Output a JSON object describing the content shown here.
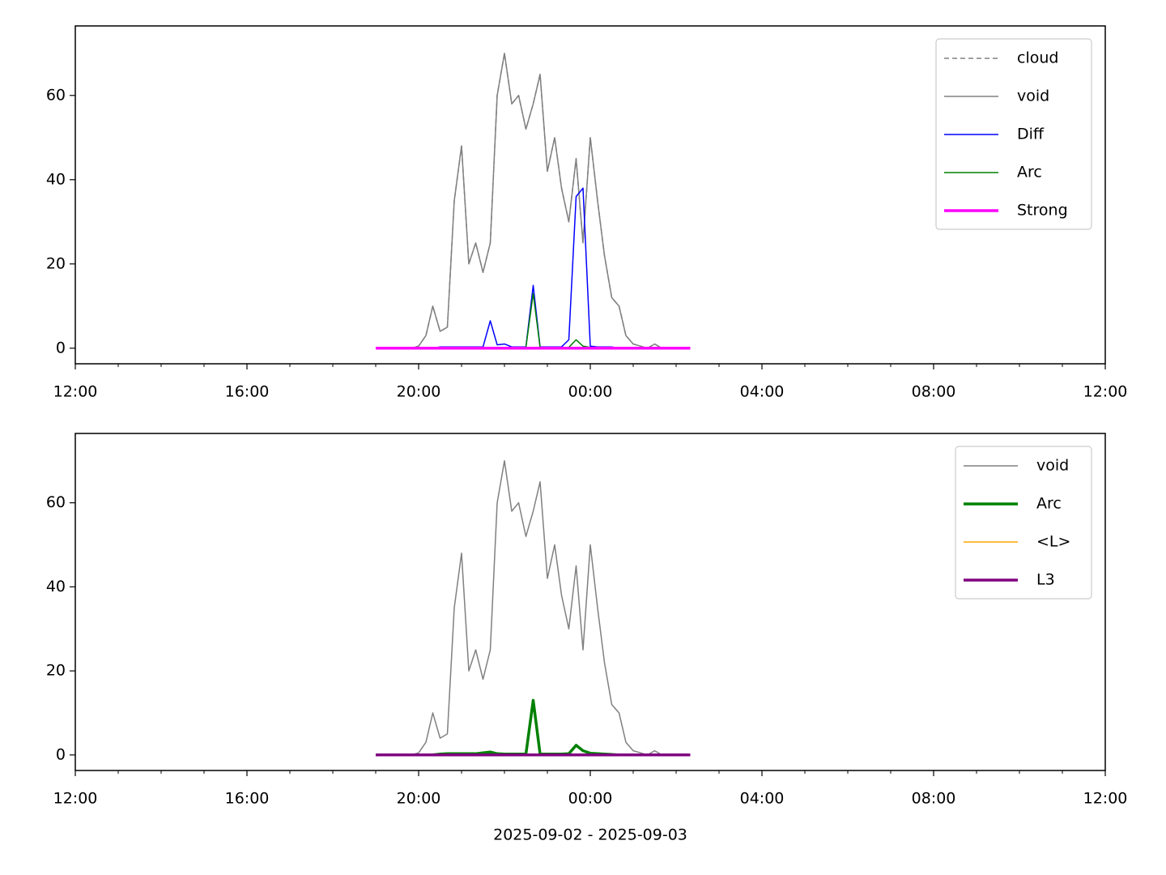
{
  "chart_data": [
    {
      "type": "line",
      "x": [
        7.0,
        7.17,
        7.33,
        7.5,
        7.67,
        7.83,
        8.0,
        8.17,
        8.33,
        8.5,
        8.67,
        8.83,
        9.0,
        9.17,
        9.33,
        9.5,
        9.67,
        9.83,
        10.0,
        10.17,
        10.33,
        10.5,
        10.67,
        10.83,
        11.0,
        11.17,
        11.33,
        11.5,
        11.67,
        11.83,
        12.0,
        12.17,
        12.33,
        12.5,
        12.67,
        12.83,
        13.0,
        13.17,
        13.33,
        13.5,
        13.67,
        13.83,
        14.0,
        14.17,
        14.33
      ],
      "series": [
        {
          "name": "cloud",
          "color": "#808080",
          "linestyle": "dashed",
          "linewidth": 1.5,
          "values": [
            0,
            0,
            0,
            0,
            0,
            0,
            0.5,
            3,
            10,
            4,
            5,
            35,
            48,
            20,
            25,
            18,
            25,
            60,
            70,
            58,
            60,
            52,
            58,
            65,
            42,
            50,
            38,
            30,
            45,
            25,
            50,
            35,
            22,
            12,
            10,
            3,
            1,
            0.5,
            0,
            1,
            0,
            0,
            0,
            0,
            0
          ]
        },
        {
          "name": "void",
          "color": "#808080",
          "linestyle": "solid",
          "linewidth": 1.5,
          "values": [
            0,
            0,
            0,
            0,
            0,
            0,
            0.5,
            3,
            10,
            4,
            5,
            35,
            48,
            20,
            25,
            18,
            25,
            60,
            70,
            58,
            60,
            52,
            58,
            65,
            42,
            50,
            38,
            30,
            45,
            25,
            50,
            35,
            22,
            12,
            10,
            3,
            1,
            0.5,
            0,
            1,
            0,
            0,
            0,
            0,
            0
          ]
        },
        {
          "name": "Diff",
          "color": "#0000ff",
          "linestyle": "solid",
          "linewidth": 1.5,
          "values": [
            0,
            0,
            0,
            0,
            0,
            0,
            0,
            0,
            0,
            0.3,
            0.3,
            0.3,
            0.3,
            0.3,
            0.3,
            0.3,
            6.5,
            0.8,
            1,
            0.3,
            0.3,
            0.3,
            14.9,
            0.3,
            0.3,
            0.3,
            0.3,
            2,
            36,
            38,
            0.5,
            0.3,
            0.3,
            0.3,
            0,
            0,
            0,
            0,
            0,
            0,
            0,
            0,
            0,
            0,
            0
          ]
        },
        {
          "name": "Arc",
          "color": "#008000",
          "linestyle": "solid",
          "linewidth": 1.5,
          "values": [
            0,
            0,
            0,
            0,
            0,
            0,
            0,
            0,
            0,
            0.2,
            0.2,
            0.2,
            0.2,
            0.2,
            0.2,
            0.2,
            0.2,
            0.2,
            0.2,
            0.2,
            0.2,
            0.2,
            13,
            0.2,
            0.2,
            0.2,
            0.2,
            0.2,
            2,
            0.5,
            0.2,
            0.2,
            0.2,
            0.1,
            0,
            0,
            0,
            0,
            0,
            0,
            0,
            0,
            0,
            0,
            0
          ]
        },
        {
          "name": "Strong",
          "color": "#ff00ff",
          "linestyle": "solid",
          "linewidth": 3.5,
          "values": [
            0,
            0,
            0,
            0,
            0,
            0,
            0,
            0,
            0,
            0,
            0,
            0,
            0,
            0,
            0,
            0,
            0,
            0,
            0,
            0,
            0,
            0,
            0,
            0,
            0,
            0,
            0,
            0,
            0,
            0,
            0,
            0,
            0,
            0,
            0,
            0,
            0,
            0,
            0,
            0,
            0,
            0,
            0,
            0,
            0
          ]
        }
      ],
      "xlim": [
        0,
        24
      ],
      "xticks": [
        {
          "value": 0,
          "label": "12:00"
        },
        {
          "value": 4,
          "label": "16:00"
        },
        {
          "value": 8,
          "label": "20:00"
        },
        {
          "value": 12,
          "label": "00:00"
        },
        {
          "value": 16,
          "label": "04:00"
        },
        {
          "value": 20,
          "label": "08:00"
        },
        {
          "value": 24,
          "label": "12:00"
        }
      ],
      "ylim": [
        -3.7,
        76.5
      ],
      "yticks": [
        0,
        20,
        40,
        60
      ],
      "legend": "upper right"
    },
    {
      "type": "line",
      "x": [
        7.0,
        7.17,
        7.33,
        7.5,
        7.67,
        7.83,
        8.0,
        8.17,
        8.33,
        8.5,
        8.67,
        8.83,
        9.0,
        9.17,
        9.33,
        9.5,
        9.67,
        9.83,
        10.0,
        10.17,
        10.33,
        10.5,
        10.67,
        10.83,
        11.0,
        11.17,
        11.33,
        11.5,
        11.67,
        11.83,
        12.0,
        12.17,
        12.33,
        12.5,
        12.67,
        12.83,
        13.0,
        13.17,
        13.33,
        13.5,
        13.67,
        13.83,
        14.0,
        14.17,
        14.33
      ],
      "series": [
        {
          "name": "void",
          "color": "#808080",
          "linestyle": "solid",
          "linewidth": 1.5,
          "values": [
            0,
            0,
            0,
            0,
            0,
            0,
            0.5,
            3,
            10,
            4,
            5,
            35,
            48,
            20,
            25,
            18,
            25,
            60,
            70,
            58,
            60,
            52,
            58,
            65,
            42,
            50,
            38,
            30,
            45,
            25,
            50,
            35,
            22,
            12,
            10,
            3,
            1,
            0.5,
            0,
            1,
            0,
            0,
            0,
            0,
            0
          ]
        },
        {
          "name": "Arc",
          "color": "#008000",
          "linestyle": "solid",
          "linewidth": 3.5,
          "values": [
            0,
            0,
            0,
            0,
            0,
            0,
            0,
            0,
            0,
            0.2,
            0.3,
            0.3,
            0.3,
            0.3,
            0.3,
            0.5,
            0.7,
            0.3,
            0.2,
            0.2,
            0.2,
            0.2,
            13,
            0.2,
            0.2,
            0.2,
            0.2,
            0.3,
            2.3,
            1,
            0.4,
            0.3,
            0.2,
            0.1,
            0,
            0,
            0,
            0,
            0,
            0,
            0,
            0,
            0,
            0,
            0
          ]
        },
        {
          "name": "<L>",
          "color": "#ffa500",
          "linestyle": "solid",
          "linewidth": 1.5,
          "values": [
            0,
            0,
            0,
            0,
            0,
            0,
            0,
            0,
            0,
            0,
            0,
            0,
            0,
            0,
            0,
            0,
            0,
            0,
            0,
            0,
            0,
            0,
            0,
            0,
            0,
            0,
            0,
            0,
            0,
            0,
            0,
            0,
            0,
            0,
            0,
            0,
            0,
            0,
            0,
            0,
            0,
            0,
            0,
            0,
            0
          ]
        },
        {
          "name": "L3",
          "color": "#800080",
          "linestyle": "solid",
          "linewidth": 3.5,
          "values": [
            0,
            0,
            0,
            0,
            0,
            0,
            0,
            0,
            0,
            0,
            0,
            0,
            0,
            0,
            0,
            0,
            0,
            0,
            0,
            0,
            0,
            0,
            0,
            0,
            0,
            0,
            0,
            0,
            0,
            0,
            0,
            0,
            0,
            0,
            0,
            0,
            0,
            0,
            0,
            0,
            0,
            0,
            0,
            0,
            0
          ]
        }
      ],
      "xlim": [
        0,
        24
      ],
      "xticks": [
        {
          "value": 0,
          "label": "12:00"
        },
        {
          "value": 4,
          "label": "16:00"
        },
        {
          "value": 8,
          "label": "20:00"
        },
        {
          "value": 12,
          "label": "00:00"
        },
        {
          "value": 16,
          "label": "04:00"
        },
        {
          "value": 20,
          "label": "08:00"
        },
        {
          "value": 24,
          "label": "12:00"
        }
      ],
      "ylim": [
        -3.7,
        76.5
      ],
      "yticks": [
        0,
        20,
        40,
        60
      ],
      "xlabel": "2025-09-02 - 2025-09-03",
      "legend": "upper right"
    }
  ]
}
